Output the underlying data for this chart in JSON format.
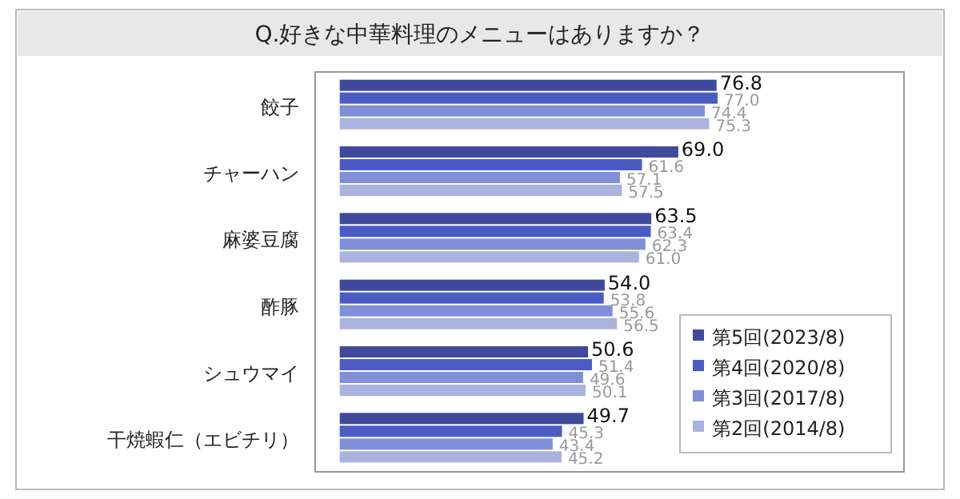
{
  "chart_data": {
    "type": "bar",
    "orientation": "horizontal",
    "title": "Q.好きな中華料理のメニューはありますか？",
    "categories": [
      "餃子",
      "チャーハン",
      "麻婆豆腐",
      "酢豚",
      "シュウマイ",
      "干焼蝦仁（エビチリ）"
    ],
    "series": [
      {
        "name": "第5回(2023/8)",
        "color": "#3f4a9c",
        "values": [
          76.8,
          69.0,
          63.5,
          54.0,
          50.6,
          49.7
        ],
        "value_labels": [
          "76.8",
          "69.0",
          "63.5",
          "54.0",
          "50.6",
          "49.7"
        ]
      },
      {
        "name": "第4回(2020/8)",
        "color": "#4a5cc4",
        "values": [
          77.0,
          61.6,
          63.4,
          53.8,
          51.4,
          45.3
        ],
        "value_labels": [
          "77.0",
          "61.6",
          "63.4",
          "53.8",
          "51.4",
          "45.3"
        ]
      },
      {
        "name": "第3回(2017/8)",
        "color": "#7f8fd8",
        "values": [
          74.4,
          57.1,
          62.3,
          55.6,
          49.6,
          43.4
        ],
        "value_labels": [
          "74.4",
          "57.1",
          "62.3",
          "55.6",
          "49.6",
          "43.4"
        ]
      },
      {
        "name": "第2回(2014/8)",
        "color": "#aab2e0",
        "values": [
          75.3,
          57.5,
          61.0,
          56.5,
          50.1,
          45.2
        ],
        "value_labels": [
          "75.3",
          "57.5",
          "61.0",
          "56.5",
          "50.1",
          "45.2"
        ]
      }
    ],
    "xlim": [
      -5,
      115
    ],
    "legend": "bottom right"
  }
}
